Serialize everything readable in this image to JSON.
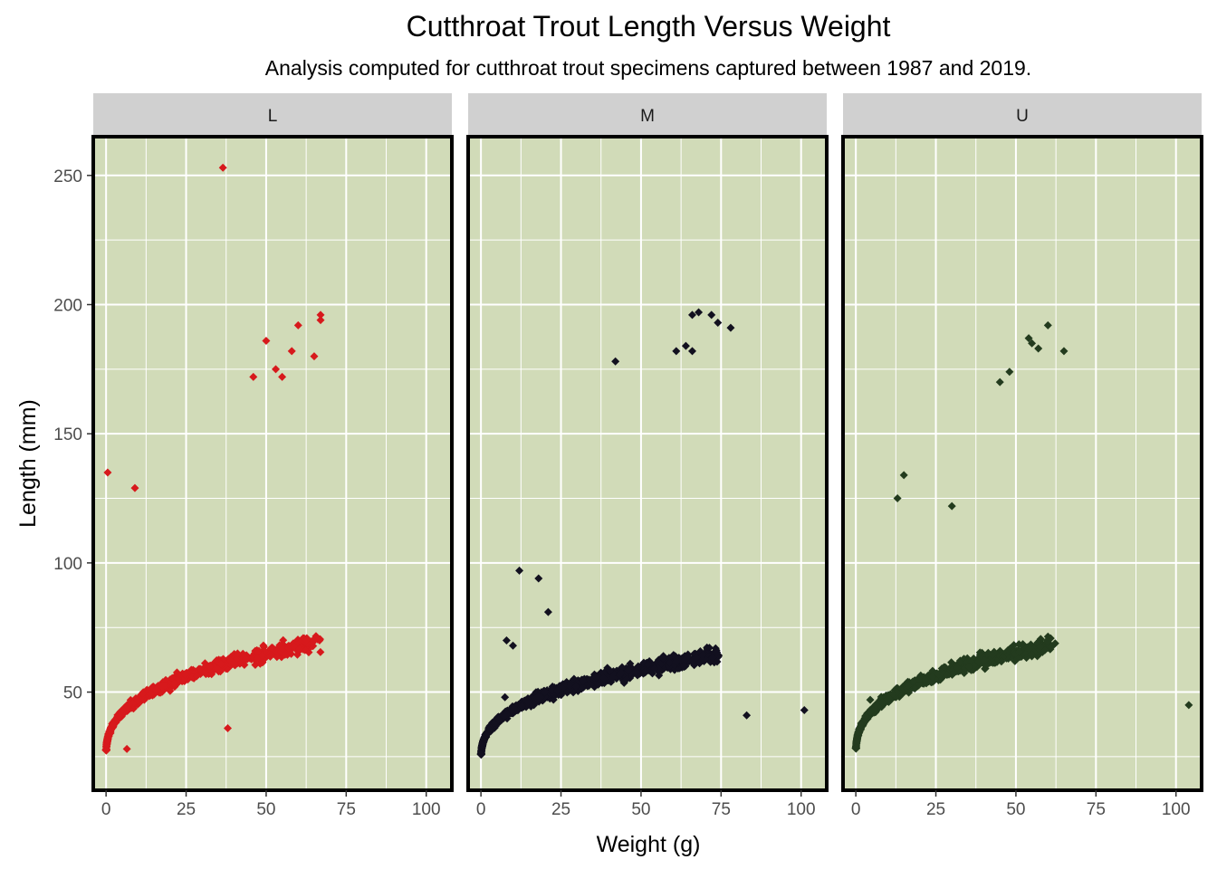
{
  "chart_data": {
    "type": "scatter",
    "title": "Cutthroat Trout Length Versus Weight",
    "subtitle": "Analysis computed for cutthroat trout specimens captured between 1987 and 2019.",
    "xlabel": "Weight (g)",
    "ylabel": "Length (mm)",
    "xlim": [
      -4,
      108
    ],
    "ylim": [
      12,
      265
    ],
    "x_ticks": [
      0,
      25,
      50,
      75,
      100
    ],
    "x_tick_labels": [
      "0",
      "25",
      "50",
      "75",
      "100"
    ],
    "y_ticks": [
      50,
      100,
      150,
      200,
      250
    ],
    "y_tick_labels": [
      "50",
      "100",
      "150",
      "200",
      "250"
    ],
    "grid": true,
    "panel_background": "#d1dbb8",
    "panel_border": "#000000",
    "grid_color": "#ffffff",
    "strip_background": "#d0d0d0",
    "marker": "diamond",
    "model": {
      "L": {
        "a": 24.2,
        "b": 0.83,
        "c": 0.36,
        "xmax": 67
      },
      "M": {
        "a": 23.0,
        "b": 0.73,
        "c": 0.36,
        "xmax": 74
      },
      "U": {
        "a": 25.0,
        "b": 0.82,
        "c": 0.36,
        "xmax": 62
      }
    },
    "facets": [
      {
        "label": "L",
        "color": "#d7191c",
        "points_count": 900,
        "outliers": [
          [
            0.5,
            135
          ],
          [
            36.5,
            253
          ],
          [
            38,
            36
          ],
          [
            6.5,
            28
          ],
          [
            9,
            129
          ],
          [
            55,
            172
          ],
          [
            60,
            192
          ],
          [
            65,
            180
          ],
          [
            67,
            196
          ],
          [
            67,
            194
          ],
          [
            50,
            186
          ],
          [
            46,
            172
          ],
          [
            53,
            175
          ],
          [
            58,
            182
          ]
        ]
      },
      {
        "label": "M",
        "color": "#12101f",
        "points_count": 1300,
        "outliers": [
          [
            83,
            41
          ],
          [
            101,
            43
          ],
          [
            7.5,
            48
          ],
          [
            21,
            81
          ],
          [
            10,
            68
          ],
          [
            8,
            70
          ],
          [
            18,
            94
          ],
          [
            66,
            196
          ],
          [
            68,
            197
          ],
          [
            72,
            196
          ],
          [
            74,
            193
          ],
          [
            78,
            191
          ],
          [
            61,
            182
          ],
          [
            64,
            184
          ],
          [
            66,
            182
          ],
          [
            42,
            178
          ],
          [
            12,
            97
          ]
        ]
      },
      {
        "label": "U",
        "color": "#233b1e",
        "points_count": 900,
        "outliers": [
          [
            104,
            45
          ],
          [
            4.5,
            47
          ],
          [
            30,
            122
          ],
          [
            60,
            192
          ],
          [
            65,
            182
          ],
          [
            54,
            187
          ],
          [
            55,
            185
          ],
          [
            57,
            183
          ],
          [
            48,
            174
          ],
          [
            45,
            170
          ],
          [
            15,
            134
          ],
          [
            13,
            125
          ]
        ]
      }
    ]
  }
}
